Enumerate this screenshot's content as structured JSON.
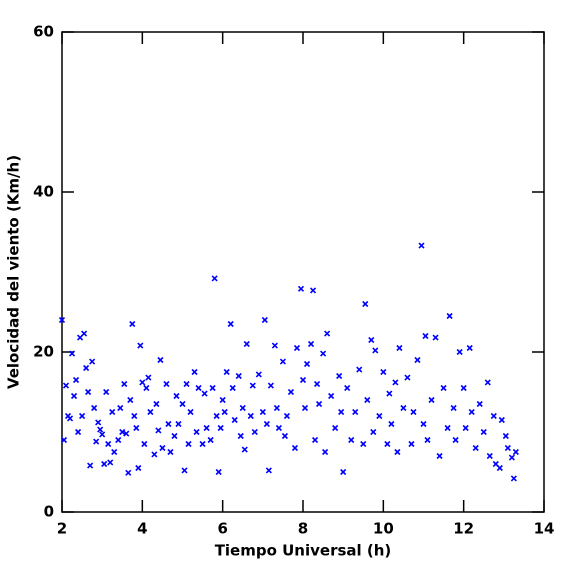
{
  "chart_data": {
    "type": "scatter",
    "x_label": "Tiempo Universal (h)",
    "y_label": "Velocidad del viento (Km/h)",
    "xlim": [
      2,
      14
    ],
    "xticks": [
      2,
      4,
      6,
      8,
      10,
      12,
      14
    ],
    "ylim": [
      0,
      60
    ],
    "yticks": [
      0,
      20,
      40,
      60
    ],
    "series": [
      {
        "color": "#0000ff",
        "x": [
          2.0,
          2.05,
          2.1,
          2.15,
          2.2,
          2.25,
          2.3,
          2.35,
          2.4,
          2.45,
          2.5,
          2.55,
          2.6,
          2.65,
          2.7,
          2.75,
          2.8,
          2.85,
          2.9,
          2.95,
          3.0,
          3.05,
          3.1,
          3.15,
          3.2,
          3.25,
          3.3,
          3.4,
          3.45,
          3.5,
          3.55,
          3.6,
          3.65,
          3.7,
          3.75,
          3.8,
          3.85,
          3.9,
          3.95,
          4.0,
          4.05,
          4.1,
          4.15,
          4.2,
          4.3,
          4.35,
          4.4,
          4.45,
          4.5,
          4.6,
          4.65,
          4.7,
          4.8,
          4.85,
          4.9,
          5.0,
          5.05,
          5.1,
          5.15,
          5.2,
          5.3,
          5.35,
          5.4,
          5.5,
          5.55,
          5.6,
          5.7,
          5.75,
          5.8,
          5.85,
          5.9,
          5.95,
          6.0,
          6.05,
          6.1,
          6.2,
          6.25,
          6.3,
          6.4,
          6.45,
          6.5,
          6.55,
          6.6,
          6.7,
          6.75,
          6.8,
          6.9,
          7.0,
          7.05,
          7.1,
          7.15,
          7.2,
          7.3,
          7.35,
          7.4,
          7.5,
          7.55,
          7.6,
          7.7,
          7.8,
          7.85,
          7.95,
          8.0,
          8.05,
          8.1,
          8.2,
          8.25,
          8.3,
          8.35,
          8.4,
          8.5,
          8.55,
          8.6,
          8.7,
          8.8,
          8.9,
          8.95,
          9.0,
          9.1,
          9.2,
          9.3,
          9.4,
          9.5,
          9.55,
          9.6,
          9.7,
          9.75,
          9.8,
          9.9,
          10.0,
          10.1,
          10.15,
          10.2,
          10.3,
          10.35,
          10.4,
          10.5,
          10.6,
          10.7,
          10.75,
          10.85,
          10.95,
          11.0,
          11.05,
          11.1,
          11.2,
          11.3,
          11.4,
          11.5,
          11.6,
          11.65,
          11.75,
          11.8,
          11.9,
          12.0,
          12.05,
          12.15,
          12.2,
          12.3,
          12.4,
          12.5,
          12.6,
          12.65,
          12.75,
          12.8,
          12.9,
          12.95,
          13.05,
          13.1,
          13.2,
          13.25,
          13.3
        ],
        "values": [
          24,
          9,
          15.8,
          12,
          11.7,
          19.8,
          14.5,
          16.5,
          10,
          21.8,
          12,
          22.3,
          18,
          15,
          5.8,
          18.8,
          13,
          8.8,
          11.2,
          10.3,
          9.7,
          6,
          15,
          8.5,
          6.2,
          12.5,
          7.5,
          9,
          13,
          10,
          16,
          9.8,
          4.9,
          14,
          23.5,
          12,
          10.5,
          5.5,
          20.8,
          16.2,
          8.5,
          15.5,
          16.8,
          12.5,
          7.2,
          13.5,
          10.2,
          19,
          8,
          16,
          11,
          7.5,
          9.5,
          14.5,
          11,
          13.5,
          5.2,
          16,
          8.5,
          12.5,
          17.5,
          10,
          15.5,
          8.5,
          14.8,
          10.5,
          9,
          15.5,
          29.2,
          12,
          5,
          10.5,
          14,
          12.5,
          17.5,
          23.5,
          15.5,
          11.5,
          17,
          9.5,
          13,
          7.8,
          21,
          12,
          15.8,
          10,
          17.2,
          12.5,
          24,
          11,
          5.2,
          15.8,
          20.8,
          13,
          10.5,
          18.8,
          9.5,
          12,
          15,
          8,
          20.5,
          27.9,
          16.5,
          13,
          18.5,
          21,
          27.7,
          9,
          16,
          13.5,
          19.8,
          7.5,
          22.3,
          14.5,
          10.5,
          17,
          12.5,
          5,
          15.5,
          9,
          12.5,
          17.8,
          8.5,
          26,
          14,
          21.5,
          10,
          20.2,
          12,
          17.5,
          8.5,
          14.8,
          11,
          16.2,
          7.5,
          20.5,
          13,
          16.8,
          8.5,
          12.5,
          19,
          33.3,
          11,
          22,
          9,
          14,
          21.8,
          7,
          15.5,
          10.5,
          24.5,
          13,
          9,
          20,
          15.5,
          10.5,
          20.5,
          12.5,
          8,
          13.5,
          10,
          16.2,
          7,
          12,
          6,
          5.5,
          11.5,
          9.5,
          8,
          6.8,
          4.2,
          7.5
        ]
      }
    ]
  }
}
